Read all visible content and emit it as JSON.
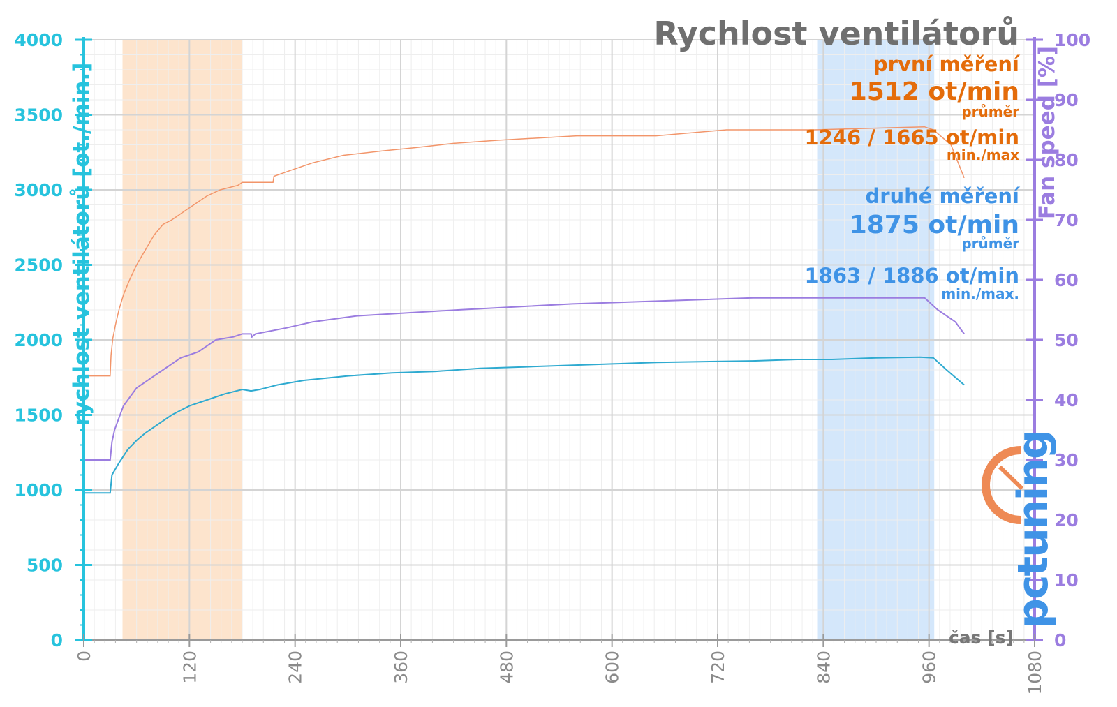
{
  "chart_data": {
    "type": "line",
    "title": "Rychlost ventilátorů",
    "xlabel": "čas [s]",
    "ylabel_left": "rychlost ventilátorů [ot./min.]",
    "ylabel_right": "Fan speed [%]",
    "xlim": [
      0,
      1080
    ],
    "ylim_left": [
      0,
      4000
    ],
    "ylim_right": [
      0,
      100
    ],
    "x_ticks": [
      0,
      120,
      240,
      360,
      480,
      600,
      720,
      840,
      960,
      1080
    ],
    "y_ticks_left": [
      0,
      500,
      1000,
      1500,
      2000,
      2500,
      3000,
      3500,
      4000
    ],
    "y_ticks_right": [
      0,
      10,
      20,
      30,
      40,
      50,
      60,
      70,
      80,
      90,
      100
    ],
    "grid": true,
    "highlight_regions": [
      {
        "x": [
          44,
          180
        ],
        "color": "#fde4cd"
      },
      {
        "x": [
          833,
          966
        ],
        "color": "#d4e7fb"
      }
    ],
    "series": [
      {
        "color": "#f2956a",
        "axis": "left",
        "points": [
          [
            0,
            1760
          ],
          [
            30,
            1760
          ],
          [
            31,
            1900
          ],
          [
            33,
            2010
          ],
          [
            36,
            2100
          ],
          [
            40,
            2200
          ],
          [
            45,
            2300
          ],
          [
            52,
            2400
          ],
          [
            60,
            2500
          ],
          [
            70,
            2600
          ],
          [
            80,
            2700
          ],
          [
            90,
            2770
          ],
          [
            100,
            2800
          ],
          [
            110,
            2840
          ],
          [
            120,
            2880
          ],
          [
            130,
            2920
          ],
          [
            140,
            2960
          ],
          [
            155,
            3000
          ],
          [
            175,
            3030
          ],
          [
            180,
            3050
          ],
          [
            215,
            3050
          ],
          [
            216,
            3090
          ],
          [
            235,
            3130
          ],
          [
            260,
            3180
          ],
          [
            295,
            3230
          ],
          [
            340,
            3260
          ],
          [
            375,
            3280
          ],
          [
            420,
            3310
          ],
          [
            470,
            3330
          ],
          [
            560,
            3360
          ],
          [
            650,
            3360
          ],
          [
            730,
            3400
          ],
          [
            830,
            3400
          ],
          [
            955,
            3420
          ],
          [
            965,
            3400
          ],
          [
            985,
            3300
          ],
          [
            1000,
            3080
          ]
        ]
      },
      {
        "color": "#9b7de0",
        "axis": "right",
        "points": [
          [
            0,
            30
          ],
          [
            30,
            30
          ],
          [
            32,
            33
          ],
          [
            35,
            35
          ],
          [
            40,
            37
          ],
          [
            45,
            39
          ],
          [
            50,
            40
          ],
          [
            55,
            41
          ],
          [
            60,
            42
          ],
          [
            70,
            43
          ],
          [
            80,
            44
          ],
          [
            90,
            45
          ],
          [
            100,
            46
          ],
          [
            110,
            47
          ],
          [
            120,
            47.5
          ],
          [
            130,
            48
          ],
          [
            140,
            49
          ],
          [
            150,
            50
          ],
          [
            170,
            50.5
          ],
          [
            180,
            51
          ],
          [
            190,
            51
          ],
          [
            191,
            50.5
          ],
          [
            195,
            51
          ],
          [
            230,
            52
          ],
          [
            260,
            53
          ],
          [
            310,
            54
          ],
          [
            425,
            55
          ],
          [
            555,
            56
          ],
          [
            760,
            57
          ],
          [
            955,
            57
          ],
          [
            970,
            55
          ],
          [
            990,
            53
          ],
          [
            1000,
            51
          ]
        ]
      },
      {
        "color": "#2eaad0",
        "axis": "left",
        "points": [
          [
            0,
            980
          ],
          [
            30,
            980
          ],
          [
            32,
            1100
          ],
          [
            40,
            1180
          ],
          [
            50,
            1270
          ],
          [
            60,
            1330
          ],
          [
            70,
            1380
          ],
          [
            80,
            1420
          ],
          [
            90,
            1460
          ],
          [
            100,
            1500
          ],
          [
            110,
            1530
          ],
          [
            120,
            1560
          ],
          [
            140,
            1600
          ],
          [
            160,
            1640
          ],
          [
            180,
            1670
          ],
          [
            190,
            1660
          ],
          [
            200,
            1670
          ],
          [
            220,
            1700
          ],
          [
            250,
            1730
          ],
          [
            300,
            1760
          ],
          [
            350,
            1780
          ],
          [
            400,
            1790
          ],
          [
            450,
            1810
          ],
          [
            500,
            1820
          ],
          [
            550,
            1830
          ],
          [
            600,
            1840
          ],
          [
            650,
            1850
          ],
          [
            700,
            1855
          ],
          [
            760,
            1860
          ],
          [
            810,
            1870
          ],
          [
            850,
            1870
          ],
          [
            900,
            1880
          ],
          [
            950,
            1885
          ],
          [
            965,
            1880
          ],
          [
            980,
            1800
          ],
          [
            1000,
            1700
          ]
        ]
      }
    ]
  },
  "annotations": {
    "first_label": "první měření",
    "first_avg": "1512 ot/min",
    "first_avg_note": "průměr",
    "first_minmax": "1246 / 1665 ot/min",
    "first_minmax_note": "min./max",
    "second_label": "druhé měření",
    "second_avg": "1875 ot/min",
    "second_avg_note": "průměr",
    "second_minmax": "1863 / 1886 ot/min",
    "second_minmax_note": "min./max."
  },
  "logo": {
    "text": "pctuning"
  },
  "colors": {
    "left_axis": "#27c3dd",
    "right_axis": "#9b7de0",
    "first": "#e46c0a",
    "second": "#3f93e6"
  }
}
